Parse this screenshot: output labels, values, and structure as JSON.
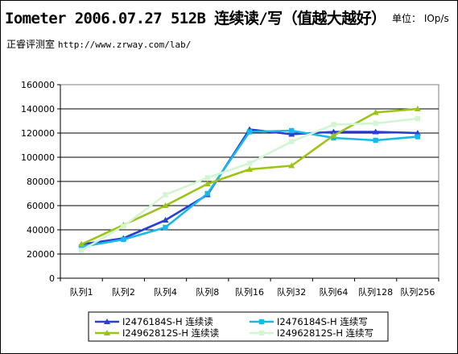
{
  "header": {
    "title": "Iometer 2006.07.27 512B 连续读/写（值越大越好）",
    "unit": "单位： IOp/s",
    "source_label": "正睿评测室",
    "source_url": "http://www.zrway.com/lab/"
  },
  "chart_data": {
    "type": "line",
    "categories": [
      "队列1",
      "队列2",
      "队列4",
      "队列8",
      "队列16",
      "队列32",
      "队列64",
      "队列128",
      "队列256"
    ],
    "ylim": [
      0,
      160000
    ],
    "yticks": [
      0,
      20000,
      40000,
      60000,
      80000,
      100000,
      120000,
      140000,
      160000
    ],
    "grid": true,
    "legend_position": "bottom",
    "series": [
      {
        "name": "I2476184S-H 连续读",
        "color": "#2a3fd2",
        "marker": "triangle",
        "values": [
          28000,
          33000,
          48000,
          69000,
          123000,
          119000,
          121000,
          121000,
          120000
        ]
      },
      {
        "name": "I2476184S-H 连续写",
        "color": "#17b8ec",
        "marker": "square",
        "values": [
          26000,
          32000,
          42000,
          70000,
          121000,
          122000,
          116000,
          114000,
          117000
        ]
      },
      {
        "name": "I24962812S-H 连续读",
        "color": "#9cc417",
        "marker": "triangle",
        "values": [
          28000,
          44000,
          60000,
          78000,
          90000,
          93000,
          118000,
          137000,
          140000
        ]
      },
      {
        "name": "I24962812S-H 连续写",
        "color": "#d2f5d2",
        "marker": "square",
        "values": [
          23000,
          43000,
          69000,
          83000,
          95000,
          113000,
          127000,
          128000,
          132000
        ]
      }
    ]
  }
}
